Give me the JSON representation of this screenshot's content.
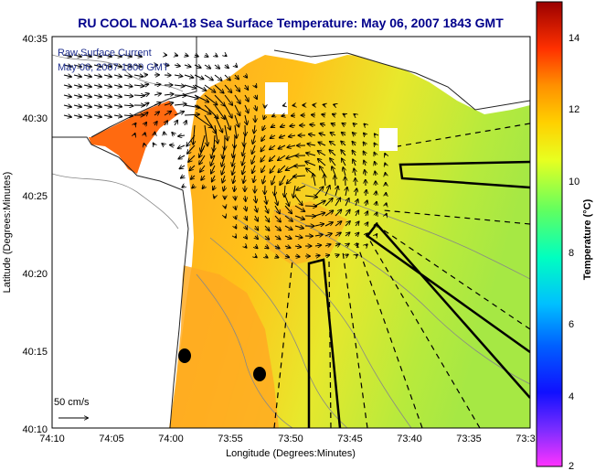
{
  "title": "RU COOL  NOAA-18  Sea Surface Temperature:  May 06, 2007 1843 GMT",
  "legend": {
    "line1": "Raw Surface Current",
    "line2": "May 06, 2007 1800 GMT"
  },
  "scale_label": "50 cm/s",
  "x_axis": {
    "label": "Longitude (Degrees:Minutes)",
    "ticks": [
      "74:10",
      "74:05",
      "74:00",
      "73:55",
      "73:50",
      "73:45",
      "73:40",
      "73:35",
      "73:3"
    ]
  },
  "y_axis": {
    "label": "Latitude (Degrees:Minutes)",
    "ticks": [
      "40:35",
      "40:30",
      "40:25",
      "40:20",
      "40:15",
      "40:10"
    ]
  },
  "colorbar": {
    "label": "Temperature (°C)",
    "ticks": [
      "14",
      "12",
      "10",
      "8",
      "6",
      "4",
      "2"
    ],
    "range": [
      2,
      15
    ],
    "colors": [
      "#ff00ff",
      "#8000ff",
      "#0000ff",
      "#0050ff",
      "#00a0ff",
      "#00e0ff",
      "#00ffc0",
      "#40ff80",
      "#a0ff40",
      "#ffff00",
      "#ffc000",
      "#ff8000",
      "#ff4000",
      "#ff0000",
      "#a00000"
    ]
  },
  "chart_data": {
    "type": "heatmap",
    "title": "RU COOL  NOAA-18  Sea Surface Temperature:  May 06, 2007 1843 GMT",
    "xlabel": "Longitude (Degrees:Minutes)",
    "ylabel": "Latitude (Degrees:Minutes)",
    "xlim_minutes_west": [
      74.1667,
      73.5
    ],
    "ylim": [
      "40:10",
      "40:35"
    ],
    "value_range_celsius": [
      2,
      15
    ]
  }
}
